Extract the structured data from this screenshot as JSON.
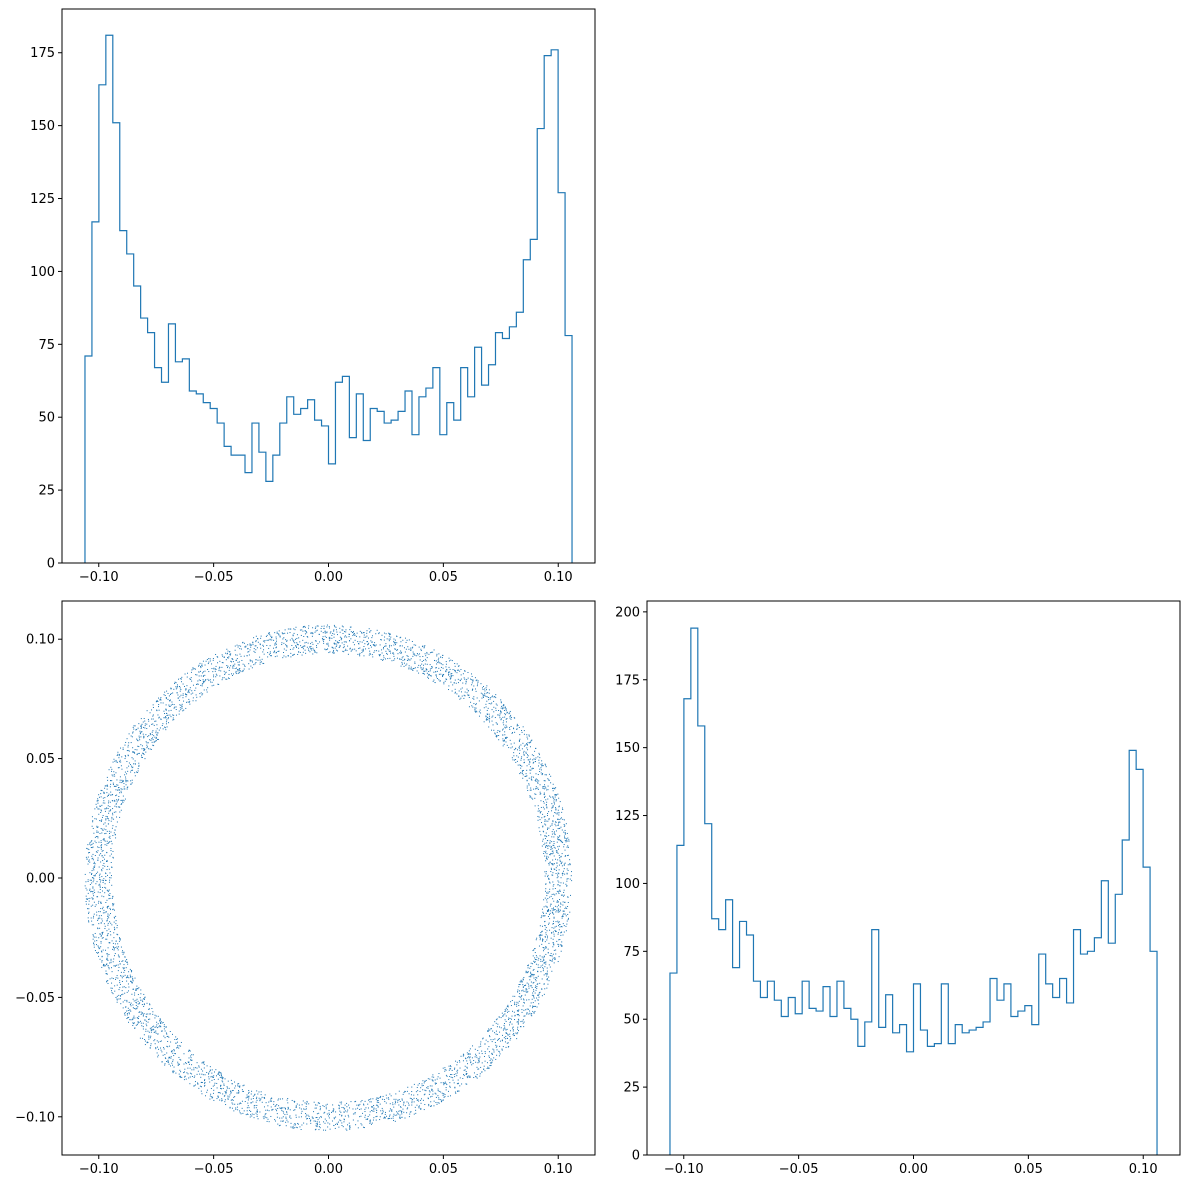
{
  "chart_data": [
    {
      "type": "histogram",
      "panel": "top-left",
      "title": "",
      "xlabel": "",
      "ylabel": "",
      "xlim": [
        -0.116,
        0.116
      ],
      "ylim": [
        0,
        190
      ],
      "xticks": [
        -0.1,
        -0.05,
        0.0,
        0.05,
        0.1
      ],
      "xtick_labels": [
        "−0.10",
        "−0.05",
        "0.00",
        "0.05",
        "0.10"
      ],
      "yticks": [
        0,
        25,
        50,
        75,
        100,
        125,
        150,
        175
      ],
      "ytick_labels": [
        "0",
        "25",
        "50",
        "75",
        "100",
        "125",
        "150",
        "175"
      ],
      "bin_range": [
        -0.106,
        0.106
      ],
      "color": "#1f77b4",
      "counts": [
        71,
        117,
        164,
        181,
        151,
        114,
        106,
        95,
        84,
        79,
        67,
        62,
        82,
        69,
        70,
        59,
        58,
        55,
        53,
        48,
        40,
        37,
        37,
        31,
        48,
        38,
        28,
        37,
        48,
        57,
        51,
        53,
        56,
        49,
        47,
        34,
        62,
        64,
        43,
        58,
        42,
        53,
        52,
        48,
        49,
        52,
        59,
        44,
        57,
        60,
        67,
        44,
        55,
        49,
        67,
        57,
        74,
        61,
        68,
        79,
        77,
        81,
        86,
        104,
        111,
        149,
        174,
        176,
        127,
        78
      ]
    },
    {
      "type": "scatter",
      "panel": "bottom-left",
      "title": "",
      "xlabel": "",
      "ylabel": "",
      "xlim": [
        -0.116,
        0.116
      ],
      "ylim": [
        -0.116,
        0.116
      ],
      "xticks": [
        -0.1,
        -0.05,
        0.0,
        0.05,
        0.1
      ],
      "xtick_labels": [
        "−0.10",
        "−0.05",
        "0.00",
        "0.05",
        "0.10"
      ],
      "yticks": [
        -0.1,
        -0.05,
        0.0,
        0.05,
        0.1
      ],
      "ytick_labels": [
        "−0.10",
        "−0.05",
        "0.00",
        "0.05",
        "0.10"
      ],
      "ring": {
        "inner_radius": 0.094,
        "outer_radius": 0.106,
        "point_count": 5000
      },
      "color": "#1f77b4"
    },
    {
      "type": "histogram",
      "panel": "bottom-right",
      "title": "",
      "xlabel": "",
      "ylabel": "",
      "xlim": [
        -0.116,
        0.116
      ],
      "ylim": [
        0,
        204
      ],
      "xticks": [
        -0.1,
        -0.05,
        0.0,
        0.05,
        0.1
      ],
      "xtick_labels": [
        "−0.10",
        "−0.05",
        "0.00",
        "0.05",
        "0.10"
      ],
      "yticks": [
        0,
        25,
        50,
        75,
        100,
        125,
        150,
        175,
        200
      ],
      "ytick_labels": [
        "0",
        "25",
        "50",
        "75",
        "100",
        "125",
        "150",
        "175",
        "200"
      ],
      "bin_range": [
        -0.106,
        0.106
      ],
      "color": "#1f77b4",
      "counts": [
        67,
        114,
        168,
        194,
        158,
        122,
        87,
        83,
        94,
        69,
        86,
        81,
        64,
        58,
        64,
        57,
        51,
        58,
        52,
        64,
        54,
        53,
        62,
        51,
        64,
        54,
        50,
        40,
        49,
        83,
        47,
        59,
        45,
        48,
        38,
        63,
        46,
        40,
        41,
        63,
        41,
        48,
        45,
        46,
        47,
        49,
        65,
        57,
        63,
        51,
        53,
        55,
        48,
        74,
        63,
        58,
        65,
        56,
        83,
        74,
        75,
        80,
        101,
        78,
        96,
        116,
        149,
        142,
        106,
        75
      ]
    }
  ]
}
